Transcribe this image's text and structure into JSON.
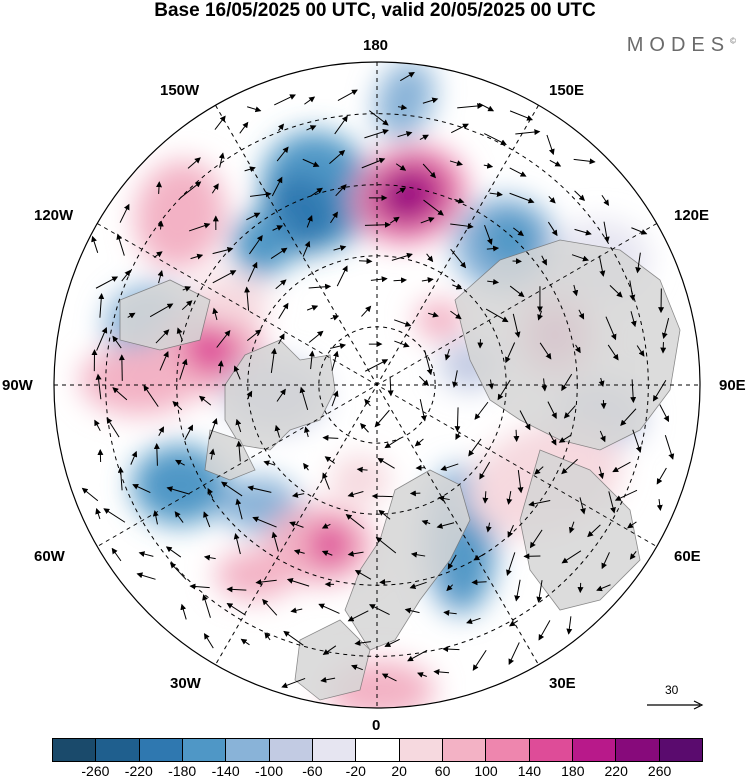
{
  "title": "Base 16/05/2025 00 UTC, valid 20/05/2025 00 UTC",
  "brand": "MODES",
  "brand_mark": "©",
  "longitude_labels": {
    "top": "180",
    "bottom": "0",
    "left": "90W",
    "right": "90E",
    "upper_left_1": "150W",
    "upper_left_2": "120W",
    "lower_left_1": "60W",
    "lower_left_2": "30W",
    "upper_right_1": "150E",
    "upper_right_2": "120E",
    "lower_right_1": "60E",
    "lower_right_2": "30E"
  },
  "vector_scale": "30",
  "legend": {
    "ticks": [
      "-260",
      "-220",
      "-180",
      "-140",
      "-100",
      "-60",
      "-20",
      "20",
      "60",
      "100",
      "140",
      "180",
      "220",
      "260"
    ],
    "colors": [
      "#1a4a6b",
      "#1f5f8e",
      "#2f78b0",
      "#4f97c6",
      "#89b3d8",
      "#c2cbe3",
      "#e6e5f1",
      "#ffffff",
      "#f6d9df",
      "#f3b2c5",
      "#ee86ae",
      "#de4c98",
      "#b8198a",
      "#870a7b",
      "#5a0b6e"
    ]
  },
  "colors": {
    "ocean": "#ffffff",
    "land": "#d6d6d6",
    "grid": "#000000"
  },
  "icons": [
    "vector-arrow-icon"
  ]
}
